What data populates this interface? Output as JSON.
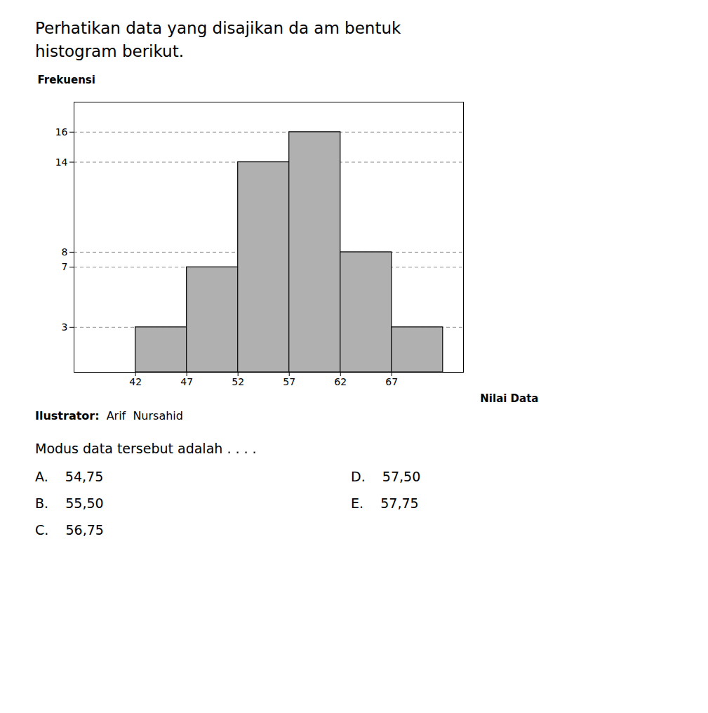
{
  "chart_data": {
    "type": "histogram",
    "title": "Perhatikan data yang disajikan da am bentuk\nhistogram berikut.",
    "x_label": "Nilai Data",
    "y_label": "Frekuensi",
    "bins": [
      42,
      47,
      52,
      57,
      62,
      67,
      72
    ],
    "values": [
      3,
      7,
      14,
      16,
      8,
      3
    ],
    "color": "#b0b0b0",
    "xlim": [
      36,
      74
    ],
    "xticks": [
      42,
      47,
      52,
      57,
      62,
      67
    ],
    "ylim": [
      0,
      18
    ],
    "yticks": [
      3,
      7,
      8,
      14,
      16
    ],
    "grid": true,
    "annotations": [
      "Ilustrator:",
      "Arif  Nursahid",
      "Modus data tersebut adalah . . . .",
      "A.    54,75",
      "B.    55,50",
      "C.    56,75",
      "D.    57,50",
      "E.    57,75"
    ]
  }
}
